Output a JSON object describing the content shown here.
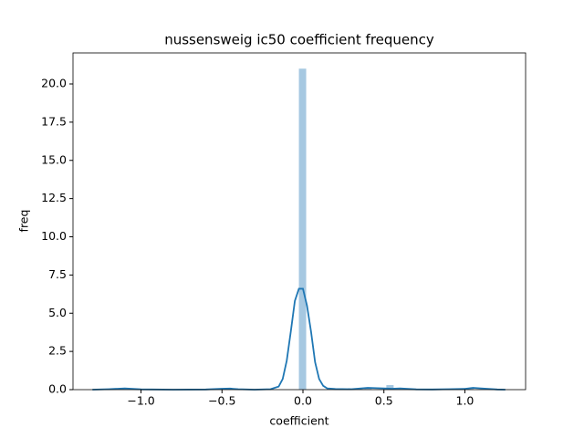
{
  "chart_data": {
    "type": "histogram",
    "title": "nussensweig ic50 coefficient frequency",
    "x_label": "coefficient",
    "y_label": "freq",
    "bins": [
      -1.15,
      -1.105,
      -1.06,
      -1.015,
      -0.97,
      -0.925,
      -0.88,
      -0.835,
      -0.79,
      -0.745,
      -0.7,
      -0.655,
      -0.61,
      -0.565,
      -0.52,
      -0.475,
      -0.43,
      -0.385,
      -0.34,
      -0.295,
      -0.25,
      -0.205,
      -0.16,
      -0.115,
      -0.07,
      -0.025,
      0.02,
      0.065,
      0.11,
      0.155,
      0.2,
      0.245,
      0.29,
      0.335,
      0.38,
      0.425,
      0.47,
      0.515,
      0.56,
      0.605,
      0.65,
      0.695,
      0.74,
      0.785,
      0.83,
      0.875,
      0.92,
      0.965,
      1.01,
      1.055,
      1.1
    ],
    "values": [
      0.05,
      0,
      0,
      0,
      0,
      0,
      0,
      0,
      0,
      0,
      0,
      0,
      0,
      0,
      0,
      0.05,
      0,
      0,
      0,
      0,
      0,
      0,
      0,
      0,
      0,
      21,
      0,
      0,
      0,
      0,
      0,
      0,
      0,
      0,
      0.1,
      0,
      0,
      0.3,
      0,
      0,
      0,
      0,
      0,
      0,
      0,
      0,
      0,
      0,
      0.1,
      0
    ],
    "color": "#a6c8e1",
    "kde": {
      "color": "#1f77b4",
      "x": [
        -1.3,
        -1.2,
        -1.1,
        -1.0,
        -0.8,
        -0.6,
        -0.5,
        -0.45,
        -0.4,
        -0.3,
        -0.2,
        -0.15,
        -0.125,
        -0.1,
        -0.075,
        -0.05,
        -0.025,
        0,
        0.025,
        0.05,
        0.075,
        0.1,
        0.125,
        0.15,
        0.2,
        0.3,
        0.4,
        0.5,
        0.55,
        0.6,
        0.7,
        0.8,
        0.9,
        1.0,
        1.05,
        1.1,
        1.2,
        1.25
      ],
      "values": [
        0,
        0.03,
        0.08,
        0.02,
        0,
        0.01,
        0.06,
        0.07,
        0.03,
        0,
        0.03,
        0.2,
        0.7,
        1.9,
        3.8,
        5.8,
        6.6,
        6.6,
        5.5,
        3.8,
        1.8,
        0.7,
        0.25,
        0.08,
        0.04,
        0.03,
        0.12,
        0.08,
        0.06,
        0.08,
        0.02,
        0.01,
        0.03,
        0.05,
        0.12,
        0.08,
        0.01,
        0
      ]
    },
    "xlim": [
      -1.42,
      1.375
    ],
    "ylim": [
      0,
      22.03
    ],
    "xticks": [
      {
        "value": -1.0,
        "label": "−1.0"
      },
      {
        "value": -0.5,
        "label": "−0.5"
      },
      {
        "value": 0,
        "label": "0.0"
      },
      0.5,
      {
        "value": 1.0,
        "label": "1.0"
      }
    ],
    "yticks": [
      {
        "value": 0,
        "label": "0.0"
      },
      2.5,
      {
        "value": 5,
        "label": "5.0"
      },
      7.5,
      {
        "value": 10,
        "label": "10.0"
      },
      12.5,
      {
        "value": 15,
        "label": "15.0"
      },
      17.5,
      {
        "value": 20,
        "label": "20.0"
      }
    ]
  }
}
